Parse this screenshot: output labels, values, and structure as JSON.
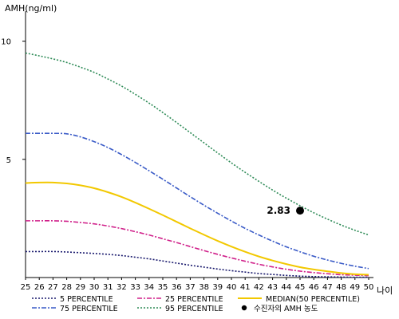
{
  "chart_data": {
    "type": "line",
    "ylabel": "AMH(ng/ml)",
    "xlabel": "나이",
    "x": [
      25,
      26,
      27,
      28,
      29,
      30,
      31,
      32,
      33,
      34,
      35,
      36,
      37,
      38,
      39,
      40,
      41,
      42,
      43,
      44,
      45,
      46,
      47,
      48,
      49,
      50
    ],
    "xlim": [
      25,
      50
    ],
    "ylim": [
      0,
      11
    ],
    "yticks": [
      5,
      10
    ],
    "grid": false,
    "legend_position": "bottom",
    "series": [
      {
        "name": "5 PERCENTILE",
        "color": "#1a1a6e",
        "style": "dotted",
        "values": [
          1.1,
          1.1,
          1.1,
          1.08,
          1.05,
          1.02,
          0.98,
          0.93,
          0.86,
          0.79,
          0.7,
          0.61,
          0.52,
          0.44,
          0.36,
          0.29,
          0.23,
          0.17,
          0.13,
          0.09,
          0.06,
          0.04,
          0.03,
          0.02,
          0.01,
          0.01
        ]
      },
      {
        "name": "25 PERCENTILE",
        "color": "#d0208a",
        "style": "dashdot",
        "values": [
          2.4,
          2.4,
          2.4,
          2.38,
          2.33,
          2.27,
          2.18,
          2.07,
          1.94,
          1.8,
          1.64,
          1.48,
          1.31,
          1.14,
          0.98,
          0.83,
          0.69,
          0.56,
          0.45,
          0.35,
          0.27,
          0.21,
          0.16,
          0.12,
          0.1,
          0.08
        ]
      },
      {
        "name": "MEDIAN(50 PERCENTILE)",
        "color": "#f2c800",
        "style": "solid",
        "values": [
          4.0,
          4.02,
          4.02,
          3.98,
          3.9,
          3.78,
          3.61,
          3.41,
          3.17,
          2.91,
          2.64,
          2.36,
          2.08,
          1.81,
          1.55,
          1.31,
          1.09,
          0.89,
          0.72,
          0.57,
          0.44,
          0.34,
          0.26,
          0.19,
          0.14,
          0.12
        ]
      },
      {
        "name": "75 PERCENTILE",
        "color": "#3a5bc7",
        "style": "dashdot",
        "values": [
          6.1,
          6.1,
          6.1,
          6.08,
          5.95,
          5.75,
          5.5,
          5.2,
          4.87,
          4.52,
          4.16,
          3.79,
          3.42,
          3.06,
          2.72,
          2.39,
          2.08,
          1.8,
          1.54,
          1.3,
          1.09,
          0.9,
          0.74,
          0.6,
          0.48,
          0.38
        ]
      },
      {
        "name": "95 PERCENTILE",
        "color": "#2e8b57",
        "style": "dotted",
        "values": [
          9.5,
          9.38,
          9.25,
          9.1,
          8.9,
          8.68,
          8.4,
          8.1,
          7.75,
          7.38,
          6.98,
          6.56,
          6.13,
          5.7,
          5.27,
          4.85,
          4.45,
          4.07,
          3.7,
          3.36,
          3.04,
          2.74,
          2.47,
          2.22,
          2.0,
          1.8
        ]
      }
    ],
    "patient_point": {
      "name": "수진자의 AMH 농도",
      "x": 45,
      "y": 2.83,
      "label": "2.83",
      "color": "#000000"
    },
    "legend_order": [
      "5 PERCENTILE",
      "25 PERCENTILE",
      "MEDIAN(50 PERCENTILE)",
      "75 PERCENTILE",
      "95 PERCENTILE",
      "수진자의 AMH 농도"
    ]
  }
}
